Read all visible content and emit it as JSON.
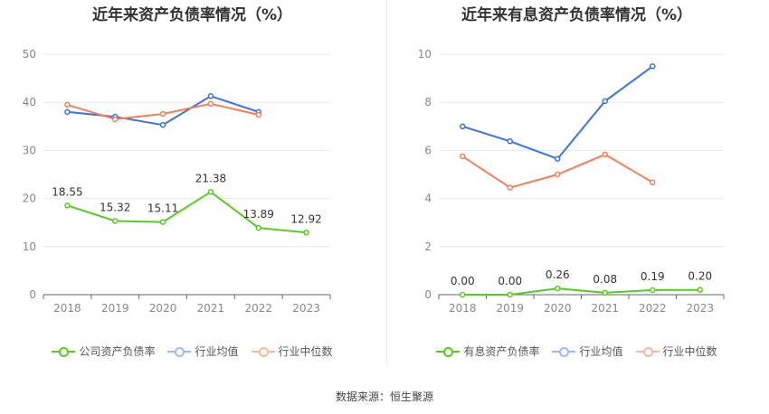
{
  "chart_data": [
    {
      "type": "line",
      "title": "近年来资产负债率情况（%）",
      "categories": [
        "2018",
        "2019",
        "2020",
        "2021",
        "2022",
        "2023"
      ],
      "ylim": [
        0,
        50
      ],
      "yticks": [
        0,
        10,
        20,
        30,
        40,
        50
      ],
      "series": [
        {
          "name": "公司资产负债率",
          "color": "#5cc726",
          "values": [
            18.55,
            15.32,
            15.11,
            21.38,
            13.89,
            12.92
          ],
          "labels": [
            "18.55",
            "15.32",
            "15.11",
            "21.38",
            "13.89",
            "12.92"
          ]
        },
        {
          "name": "行业均值",
          "color": "#3d73d6",
          "values": [
            38.0,
            37.0,
            35.3,
            41.3,
            38.0,
            null
          ]
        },
        {
          "name": "行业中位数",
          "color": "#f08060",
          "values": [
            39.5,
            36.5,
            37.6,
            39.7,
            37.4,
            null
          ]
        }
      ]
    },
    {
      "type": "line",
      "title": "近年来有息资产负债率情况（%）",
      "categories": [
        "2018",
        "2019",
        "2020",
        "2021",
        "2022",
        "2023"
      ],
      "ylim": [
        0,
        10
      ],
      "yticks": [
        0,
        2,
        4,
        6,
        8,
        10
      ],
      "series": [
        {
          "name": "有息资产负债率",
          "color": "#5cc726",
          "values": [
            0.0,
            0.0,
            0.26,
            0.08,
            0.19,
            0.2
          ],
          "labels": [
            "0.00",
            "0.00",
            "0.26",
            "0.08",
            "0.19",
            "0.20"
          ]
        },
        {
          "name": "行业均值",
          "color": "#3d73d6",
          "values": [
            7.0,
            6.38,
            5.65,
            8.05,
            9.5,
            null
          ]
        },
        {
          "name": "行业中位数",
          "color": "#f08060",
          "values": [
            5.75,
            4.45,
            5.0,
            5.83,
            4.67,
            null
          ]
        }
      ]
    }
  ],
  "legend_colors": {
    "green": "#5cc726",
    "blue": "#9dbbf0",
    "orange": "#f6b6a3"
  },
  "source_text": "数据来源：恒生聚源"
}
